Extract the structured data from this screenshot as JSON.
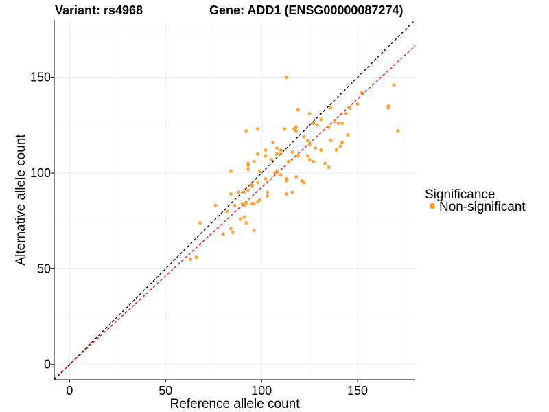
{
  "titles": {
    "variant": "Variant: rs4968",
    "gene": "Gene: ADD1 (ENSG00000087274)"
  },
  "legend": {
    "title": "Significance",
    "items": [
      {
        "label": "Non-significant",
        "color": "#f7961e"
      }
    ]
  },
  "chart_data": {
    "type": "scatter",
    "xlabel": "Reference allele count",
    "ylabel": "Alternative allele count",
    "xlim": [
      -8,
      180
    ],
    "ylim": [
      -8,
      180
    ],
    "xticks": [
      0,
      50,
      100,
      150
    ],
    "yticks": [
      0,
      50,
      100,
      150
    ],
    "grid": true,
    "legend_position": "right",
    "reference_lines": [
      {
        "style": "dashed",
        "color": "#000000",
        "slope": 1.0,
        "intercept": 0
      },
      {
        "style": "dashed",
        "color": "#ff0000",
        "slope": 0.925,
        "intercept": 0
      }
    ],
    "series": [
      {
        "name": "Non-significant",
        "color": "#f7961e",
        "points": [
          [
            113,
            150
          ],
          [
            169,
            146
          ],
          [
            152,
            142
          ],
          [
            166,
            135
          ],
          [
            166,
            134
          ],
          [
            150,
            136
          ],
          [
            146,
            134
          ],
          [
            144,
            131
          ],
          [
            136,
            134
          ],
          [
            125,
            131
          ],
          [
            119,
            133
          ],
          [
            131,
            128
          ],
          [
            138,
            127
          ],
          [
            140,
            126
          ],
          [
            142,
            126
          ],
          [
            127,
            126
          ],
          [
            129,
            125
          ],
          [
            135,
            124
          ],
          [
            118,
            124
          ],
          [
            118,
            122
          ],
          [
            117,
            123
          ],
          [
            112,
            123
          ],
          [
            98,
            123
          ],
          [
            92,
            122
          ],
          [
            171,
            122
          ],
          [
            122,
            119
          ],
          [
            145,
            120
          ],
          [
            124,
            117
          ],
          [
            125,
            115
          ],
          [
            136,
            117
          ],
          [
            106,
            116
          ],
          [
            142,
            116
          ],
          [
            141,
            114
          ],
          [
            139,
            112
          ],
          [
            131,
            112
          ],
          [
            128,
            113
          ],
          [
            110,
            112
          ],
          [
            102,
            112
          ],
          [
            108,
            110
          ],
          [
            108,
            113
          ],
          [
            116,
            111
          ],
          [
            110,
            110
          ],
          [
            93,
            105
          ],
          [
            98,
            110
          ],
          [
            102,
            109
          ],
          [
            105,
            107
          ],
          [
            119,
            109
          ],
          [
            125,
            107
          ],
          [
            124,
            109
          ],
          [
            127,
            106
          ],
          [
            133,
            105
          ],
          [
            135,
            103
          ],
          [
            114,
            106
          ],
          [
            96,
            106
          ],
          [
            93,
            104
          ],
          [
            93,
            102
          ],
          [
            99,
            101
          ],
          [
            107,
            100
          ],
          [
            108,
            101
          ],
          [
            84,
            101
          ],
          [
            110,
            99
          ],
          [
            113,
            96
          ],
          [
            118,
            98
          ],
          [
            121,
            96
          ],
          [
            122,
            95
          ],
          [
            113,
            97
          ],
          [
            116,
            90
          ],
          [
            102,
            97
          ],
          [
            98,
            95
          ],
          [
            95,
            94
          ],
          [
            95,
            93
          ],
          [
            93,
            91
          ],
          [
            91,
            90
          ],
          [
            88,
            90
          ],
          [
            99,
            86
          ],
          [
            90,
            84
          ],
          [
            92,
            84
          ],
          [
            98,
            85
          ],
          [
            95,
            84
          ],
          [
            96,
            84
          ],
          [
            91,
            83
          ],
          [
            86,
            83
          ],
          [
            84,
            89
          ],
          [
            103,
            90
          ],
          [
            103,
            88
          ],
          [
            113,
            89
          ],
          [
            76,
            83
          ],
          [
            82,
            80
          ],
          [
            89,
            76
          ],
          [
            91,
            77
          ],
          [
            92,
            74
          ],
          [
            84,
            71
          ],
          [
            85,
            69
          ],
          [
            80,
            68
          ],
          [
            96,
            70
          ],
          [
            68,
            74
          ],
          [
            66,
            56
          ],
          [
            63,
            55
          ]
        ]
      }
    ]
  }
}
